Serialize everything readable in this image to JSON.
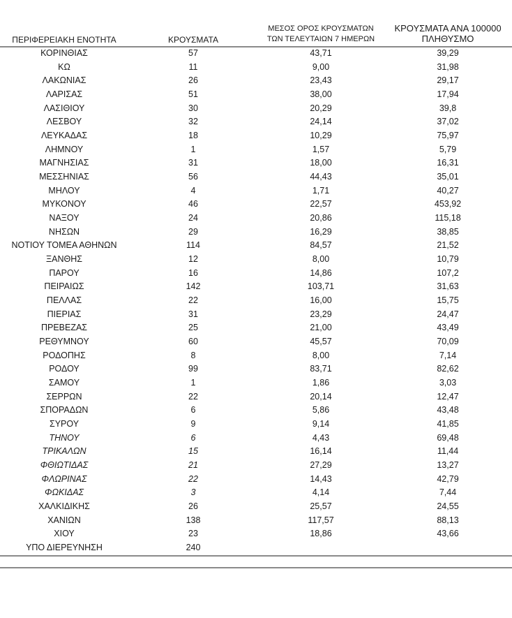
{
  "headers": {
    "region": "ΠΕΡΙΦΕΡΕΙΑΚΗ ΕΝΟΤΗΤΑ",
    "cases": "ΚΡΟΥΣΜΑΤΑ",
    "avg_line1": "ΜΕΣΟΣ ΟΡΟΣ ΚΡΟΥΣΜΑΤΩΝ",
    "avg_line2": "ΤΩΝ ΤΕΛΕΥΤΑΙΩΝ 7 ΗΜΕΡΩΝ",
    "per100k_line1": "ΚΡΟΥΣΜΑΤΑ ΑΝΑ 100000",
    "per100k_line2": "ΠΛΗΘΥΣΜΟ"
  },
  "rows": [
    {
      "region": "ΚΟΡΙΝΘΙΑΣ",
      "cases": "57",
      "avg7": "43,71",
      "per100k": "39,29"
    },
    {
      "region": "ΚΩ",
      "cases": "11",
      "avg7": "9,00",
      "per100k": "31,98"
    },
    {
      "region": "ΛΑΚΩΝΙΑΣ",
      "cases": "26",
      "avg7": "23,43",
      "per100k": "29,17"
    },
    {
      "region": "ΛΑΡΙΣΑΣ",
      "cases": "51",
      "avg7": "38,00",
      "per100k": "17,94"
    },
    {
      "region": "ΛΑΣΙΘΙΟΥ",
      "cases": "30",
      "avg7": "20,29",
      "per100k": "39,8"
    },
    {
      "region": "ΛΕΣΒΟΥ",
      "cases": "32",
      "avg7": "24,14",
      "per100k": "37,02"
    },
    {
      "region": "ΛΕΥΚΑΔΑΣ",
      "cases": "18",
      "avg7": "10,29",
      "per100k": "75,97"
    },
    {
      "region": "ΛΗΜΝΟΥ",
      "cases": "1",
      "avg7": "1,57",
      "per100k": "5,79"
    },
    {
      "region": "ΜΑΓΝΗΣΙΑΣ",
      "cases": "31",
      "avg7": "18,00",
      "per100k": "16,31"
    },
    {
      "region": "ΜΕΣΣΗΝΙΑΣ",
      "cases": "56",
      "avg7": "44,43",
      "per100k": "35,01"
    },
    {
      "region": "ΜΗΛΟΥ",
      "cases": "4",
      "avg7": "1,71",
      "per100k": "40,27"
    },
    {
      "region": "ΜΥΚΟΝΟΥ",
      "cases": "46",
      "avg7": "22,57",
      "per100k": "453,92"
    },
    {
      "region": "ΝΑΞΟΥ",
      "cases": "24",
      "avg7": "20,86",
      "per100k": "115,18"
    },
    {
      "region": "ΝΗΣΩΝ",
      "cases": "29",
      "avg7": "16,29",
      "per100k": "38,85"
    },
    {
      "region": "ΝΟΤΙΟΥ ΤΟΜΕΑ ΑΘΗΝΩΝ",
      "cases": "114",
      "avg7": "84,57",
      "per100k": "21,52"
    },
    {
      "region": "ΞΑΝΘΗΣ",
      "cases": "12",
      "avg7": "8,00",
      "per100k": "10,79"
    },
    {
      "region": "ΠΑΡΟΥ",
      "cases": "16",
      "avg7": "14,86",
      "per100k": "107,2"
    },
    {
      "region": "ΠΕΙΡΑΙΩΣ",
      "cases": "142",
      "avg7": "103,71",
      "per100k": "31,63"
    },
    {
      "region": "ΠΕΛΛΑΣ",
      "cases": "22",
      "avg7": "16,00",
      "per100k": "15,75"
    },
    {
      "region": "ΠΙΕΡΙΑΣ",
      "cases": "31",
      "avg7": "23,29",
      "per100k": "24,47"
    },
    {
      "region": "ΠΡΕΒΕΖΑΣ",
      "cases": "25",
      "avg7": "21,00",
      "per100k": "43,49"
    },
    {
      "region": "ΡΕΘΥΜΝΟΥ",
      "cases": "60",
      "avg7": "45,57",
      "per100k": "70,09"
    },
    {
      "region": "ΡΟΔΟΠΗΣ",
      "cases": "8",
      "avg7": "8,00",
      "per100k": "7,14"
    },
    {
      "region": "ΡΟΔΟΥ",
      "cases": "99",
      "avg7": "83,71",
      "per100k": "82,62"
    },
    {
      "region": "ΣΑΜΟΥ",
      "cases": "1",
      "avg7": "1,86",
      "per100k": "3,03"
    },
    {
      "region": "ΣΕΡΡΩΝ",
      "cases": "22",
      "avg7": "20,14",
      "per100k": "12,47"
    },
    {
      "region": "ΣΠΟΡΑΔΩΝ",
      "cases": "6",
      "avg7": "5,86",
      "per100k": "43,48"
    },
    {
      "region": "ΣΥΡΟΥ",
      "cases": "9",
      "avg7": "9,14",
      "per100k": "41,85"
    },
    {
      "region": "ΤΗΝΟΥ",
      "cases": "6",
      "avg7": "4,43",
      "per100k": "69,48",
      "italic": true
    },
    {
      "region": "ΤΡΙΚΑΛΩΝ",
      "cases": "15",
      "avg7": "16,14",
      "per100k": "11,44",
      "italic": true
    },
    {
      "region": "ΦΘΙΩΤΙΔΑΣ",
      "cases": "21",
      "avg7": "27,29",
      "per100k": "13,27",
      "italic": true
    },
    {
      "region": "ΦΛΩΡΙΝΑΣ",
      "cases": "22",
      "avg7": "14,43",
      "per100k": "42,79",
      "italic": true
    },
    {
      "region": "ΦΩΚΙΔΑΣ",
      "cases": "3",
      "avg7": "4,14",
      "per100k": "7,44",
      "italic": true
    },
    {
      "region": "ΧΑΛΚΙΔΙΚΗΣ",
      "cases": "26",
      "avg7": "25,57",
      "per100k": "24,55"
    },
    {
      "region": "ΧΑΝΙΩΝ",
      "cases": "138",
      "avg7": "117,57",
      "per100k": "88,13"
    },
    {
      "region": "ΧΙΟΥ",
      "cases": "23",
      "avg7": "18,86",
      "per100k": "43,66"
    },
    {
      "region": "ΥΠΟ ΔΙΕΡΕΥΝΗΣΗ",
      "cases": "240",
      "avg7": "",
      "per100k": ""
    }
  ]
}
